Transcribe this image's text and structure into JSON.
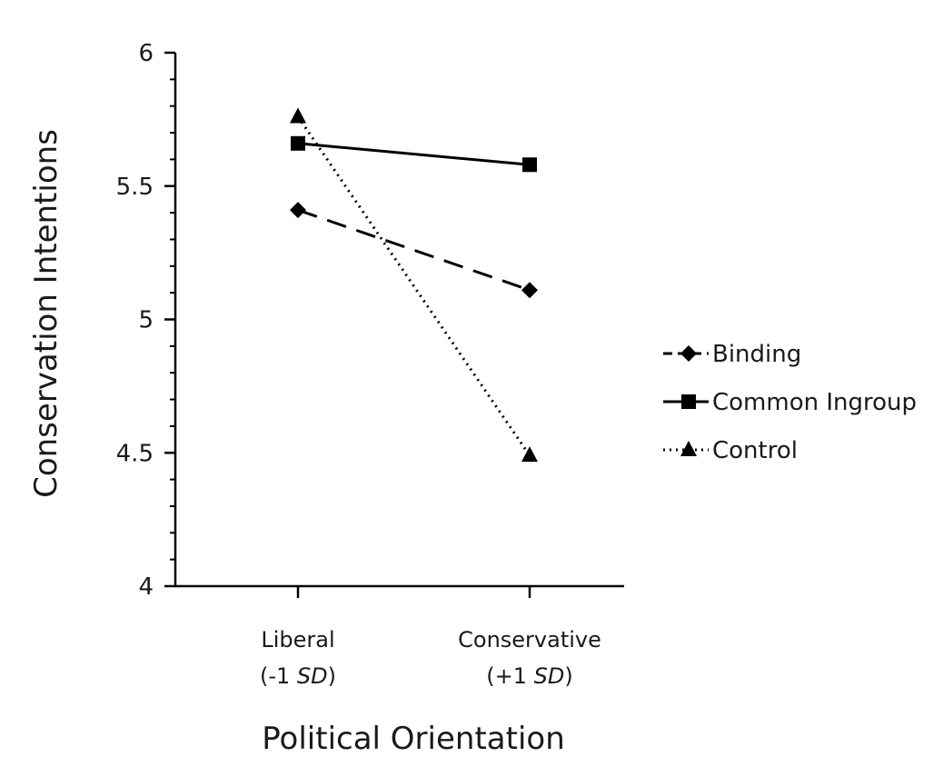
{
  "chart_data": {
    "type": "line",
    "title": "",
    "xlabel": "Political Orientation",
    "ylabel": "Conservation Intentions",
    "categories": [
      {
        "line1": "Liberal",
        "line2_prefix": "(-1 ",
        "line2_italic": "SD",
        "line2_suffix": ")"
      },
      {
        "line1": "Conservative",
        "line2_prefix": "(+1 ",
        "line2_italic": "SD",
        "line2_suffix": ")"
      }
    ],
    "ylim": [
      4,
      6
    ],
    "yticks": [
      4,
      4.5,
      5,
      5.5,
      6
    ],
    "ytick_labels": [
      "4",
      "4.5",
      "5",
      "5.5",
      "6"
    ],
    "minor_ticks_per_interval": 5,
    "grid": false,
    "legend_position": "right",
    "series": [
      {
        "name": "Binding",
        "values": [
          5.41,
          5.11
        ],
        "line_style": "dashed",
        "marker": "diamond",
        "color": "#000000"
      },
      {
        "name": "Common Ingroup",
        "values": [
          5.66,
          5.58
        ],
        "line_style": "solid",
        "marker": "square",
        "color": "#000000"
      },
      {
        "name": "Control",
        "values": [
          5.76,
          4.49
        ],
        "line_style": "dotted",
        "marker": "triangle",
        "color": "#000000"
      }
    ]
  }
}
